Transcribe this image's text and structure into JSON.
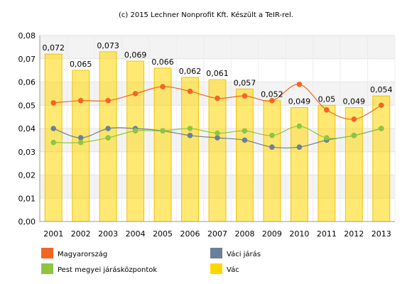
{
  "credit": "(c) 2015 Lechner Nonprofit Kft. Készült a TeIR-rel.",
  "chart_data": {
    "type": "bar+line",
    "categories": [
      "2001",
      "2002",
      "2003",
      "2004",
      "2005",
      "2006",
      "2007",
      "2008",
      "2009",
      "2010",
      "2011",
      "2012",
      "2013"
    ],
    "ylim": [
      0,
      0.08
    ],
    "yticks": [
      "0,00",
      "0,01",
      "0,02",
      "0,03",
      "0,04",
      "0,05",
      "0,06",
      "0,07",
      "0,08"
    ],
    "grid": "alternating horizontal bands",
    "legend_position": "bottom",
    "bar_series": {
      "name": "Vác",
      "color": "#ffd700",
      "values": [
        0.072,
        0.065,
        0.073,
        0.069,
        0.066,
        0.062,
        0.061,
        0.057,
        0.052,
        0.049,
        0.05,
        0.049,
        0.054
      ],
      "labels": [
        "0,072",
        "0,065",
        "0,073",
        "0,069",
        "0,066",
        "0,062",
        "0,061",
        "0,057",
        "0,052",
        "0,049",
        "0,05",
        "0,049",
        "0,054"
      ]
    },
    "line_series": [
      {
        "name": "Magyarország",
        "color": "#f26522",
        "values": [
          0.051,
          0.052,
          0.052,
          0.055,
          0.058,
          0.056,
          0.053,
          0.054,
          0.052,
          0.059,
          0.048,
          0.044,
          0.05
        ]
      },
      {
        "name": "Váci járás",
        "color": "#6a7f99",
        "values": [
          0.04,
          0.036,
          0.04,
          0.04,
          0.039,
          0.037,
          0.036,
          0.035,
          0.032,
          0.032,
          0.035,
          0.037,
          0.04
        ]
      },
      {
        "name": "Pest megyei járásközpontok",
        "color": "#8dc63f",
        "values": [
          0.034,
          0.034,
          0.036,
          0.039,
          0.039,
          0.04,
          0.038,
          0.039,
          0.037,
          0.041,
          0.036,
          0.037,
          0.04
        ]
      }
    ],
    "legend": [
      {
        "name": "Magyarország",
        "color": "#f26522"
      },
      {
        "name": "Váci járás",
        "color": "#6a7f99"
      },
      {
        "name": "Pest megyei járásközpontok",
        "color": "#8dc63f"
      },
      {
        "name": "Vác",
        "color": "#ffd700"
      }
    ]
  }
}
